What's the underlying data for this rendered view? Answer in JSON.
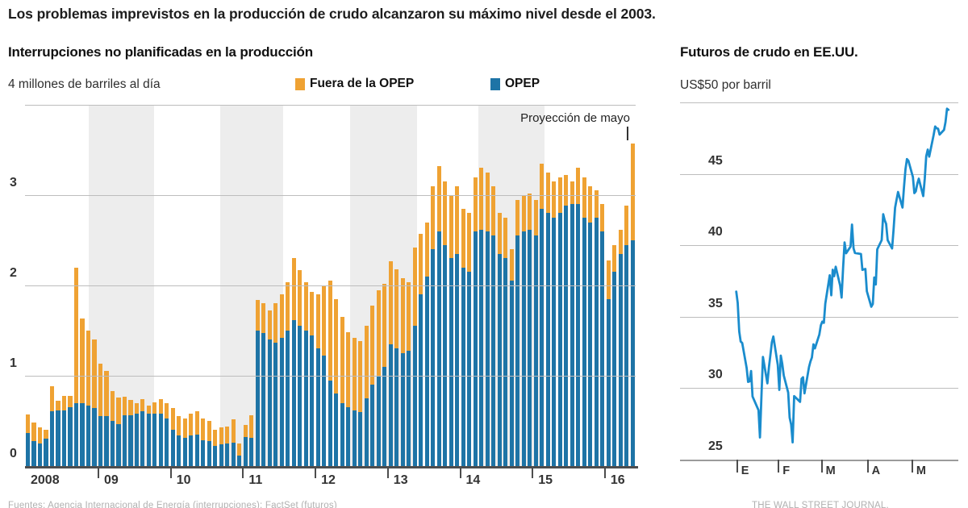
{
  "page": {
    "headline": "Los problemas imprevistos en la producción de crudo alcanzaron su máximo nivel desde el 2003.",
    "footer_left": "Fuentes: Agencia Internacional de Energía (interrupciones); FactSet (futuros)",
    "footer_right": "THE WALL STREET JOURNAL."
  },
  "colors": {
    "opec_blue": "#1e74a6",
    "non_opec_orange": "#efa233",
    "futures_line_blue": "#1a8ccd",
    "grid_gray": "#bdbdbd",
    "band_gray": "#ededed",
    "axis_dark": "#4d4d4d"
  },
  "left_chart": {
    "title": "Interrupciones no planificadas en la producción",
    "unit_label": "4 millones de barriles al día",
    "legend": [
      {
        "label": "Fuera de la OPEP",
        "color": "#efa233"
      },
      {
        "label": "OPEP",
        "color": "#1e74a6"
      }
    ],
    "annotation": "Proyección de mayo",
    "y_labels": [
      "3",
      "2",
      "1",
      "0"
    ],
    "x_labels": [
      "2008",
      "09",
      "10",
      "11",
      "12",
      "13",
      "14",
      "15",
      "16"
    ]
  },
  "right_chart": {
    "title": "Futuros de crudo en EE.UU.",
    "unit_label": "US$50 por barril",
    "y_labels": [
      "45",
      "40",
      "35",
      "30",
      "25"
    ],
    "x_labels": [
      "E",
      "F",
      "M",
      "A",
      "M"
    ]
  },
  "chart_data": [
    {
      "type": "bar",
      "stacked": true,
      "title": "Interrupciones no planificadas en la producción",
      "ylabel": "millones de barriles al día",
      "ylim": [
        0,
        4
      ],
      "y_gridlines": [
        4,
        3,
        2,
        1,
        0
      ],
      "x_axis_year_labels": [
        "2008",
        "09",
        "10",
        "11",
        "12",
        "13",
        "14",
        "15",
        "16"
      ],
      "annotation": {
        "text": "Proyección de mayo",
        "applies_to": "2016-05"
      },
      "shaded_band_fractions": [
        [
          0.104,
          0.211
        ],
        [
          0.32,
          0.423
        ],
        [
          0.532,
          0.642
        ],
        [
          0.742,
          0.851
        ]
      ],
      "categories": [
        "2008-01",
        "2008-02",
        "2008-03",
        "2008-04",
        "2008-05",
        "2008-06",
        "2008-07",
        "2008-08",
        "2008-09",
        "2008-10",
        "2008-11",
        "2008-12",
        "2009-01",
        "2009-02",
        "2009-03",
        "2009-04",
        "2009-05",
        "2009-06",
        "2009-07",
        "2009-08",
        "2009-09",
        "2009-10",
        "2009-11",
        "2009-12",
        "2010-01",
        "2010-02",
        "2010-03",
        "2010-04",
        "2010-05",
        "2010-06",
        "2010-07",
        "2010-08",
        "2010-09",
        "2010-10",
        "2010-11",
        "2010-12",
        "2011-01",
        "2011-02",
        "2011-03",
        "2011-04",
        "2011-05",
        "2011-06",
        "2011-07",
        "2011-08",
        "2011-09",
        "2011-10",
        "2011-11",
        "2011-12",
        "2012-01",
        "2012-02",
        "2012-03",
        "2012-04",
        "2012-05",
        "2012-06",
        "2012-07",
        "2012-08",
        "2012-09",
        "2012-10",
        "2012-11",
        "2012-12",
        "2013-01",
        "2013-02",
        "2013-03",
        "2013-04",
        "2013-05",
        "2013-06",
        "2013-07",
        "2013-08",
        "2013-09",
        "2013-10",
        "2013-11",
        "2013-12",
        "2014-01",
        "2014-02",
        "2014-03",
        "2014-04",
        "2014-05",
        "2014-06",
        "2014-07",
        "2014-08",
        "2014-09",
        "2014-10",
        "2014-11",
        "2014-12",
        "2015-01",
        "2015-02",
        "2015-03",
        "2015-04",
        "2015-05",
        "2015-06",
        "2015-07",
        "2015-08",
        "2015-09",
        "2015-10",
        "2015-11",
        "2015-12",
        "2016-01",
        "2016-02",
        "2016-03",
        "2016-04",
        "2016-05"
      ],
      "series": [
        {
          "name": "OPEP",
          "color": "#1e74a6",
          "values": [
            0.37,
            0.28,
            0.25,
            0.3,
            0.61,
            0.62,
            0.62,
            0.65,
            0.7,
            0.7,
            0.67,
            0.64,
            0.55,
            0.55,
            0.5,
            0.46,
            0.56,
            0.56,
            0.58,
            0.61,
            0.58,
            0.58,
            0.58,
            0.53,
            0.4,
            0.34,
            0.31,
            0.34,
            0.35,
            0.29,
            0.28,
            0.22,
            0.24,
            0.25,
            0.26,
            0.12,
            0.32,
            0.31,
            1.5,
            1.47,
            1.4,
            1.37,
            1.42,
            1.5,
            1.62,
            1.55,
            1.5,
            1.45,
            1.3,
            1.22,
            0.95,
            0.8,
            0.7,
            0.65,
            0.62,
            0.6,
            0.75,
            0.9,
            1.0,
            1.1,
            1.35,
            1.3,
            1.25,
            1.28,
            1.55,
            1.9,
            2.1,
            2.4,
            2.6,
            2.45,
            2.3,
            2.35,
            2.2,
            2.15,
            2.6,
            2.62,
            2.6,
            2.55,
            2.35,
            2.3,
            2.05,
            2.55,
            2.6,
            2.62,
            2.55,
            2.85,
            2.8,
            2.75,
            2.8,
            2.88,
            2.9,
            2.9,
            2.75,
            2.7,
            2.75,
            2.6,
            1.85,
            2.15,
            2.35,
            2.45,
            2.5
          ]
        },
        {
          "name": "Fuera de la OPEP",
          "color": "#efa233",
          "values": [
            0.2,
            0.2,
            0.18,
            0.1,
            0.27,
            0.1,
            0.16,
            0.13,
            1.5,
            0.93,
            0.83,
            0.76,
            0.58,
            0.5,
            0.33,
            0.3,
            0.21,
            0.17,
            0.12,
            0.13,
            0.09,
            0.13,
            0.16,
            0.17,
            0.24,
            0.21,
            0.22,
            0.24,
            0.26,
            0.24,
            0.22,
            0.18,
            0.19,
            0.19,
            0.26,
            0.13,
            0.14,
            0.25,
            0.34,
            0.33,
            0.32,
            0.43,
            0.48,
            0.54,
            0.68,
            0.62,
            0.54,
            0.48,
            0.6,
            0.78,
            1.1,
            1.05,
            0.95,
            0.83,
            0.8,
            0.78,
            0.8,
            0.88,
            0.95,
            0.92,
            0.92,
            0.88,
            0.83,
            0.76,
            0.87,
            0.67,
            0.6,
            0.7,
            0.72,
            0.7,
            0.7,
            0.75,
            0.65,
            0.65,
            0.6,
            0.68,
            0.65,
            0.55,
            0.45,
            0.45,
            0.35,
            0.4,
            0.4,
            0.4,
            0.4,
            0.5,
            0.45,
            0.4,
            0.4,
            0.34,
            0.25,
            0.4,
            0.45,
            0.4,
            0.3,
            0.3,
            0.43,
            0.3,
            0.27,
            0.43,
            1.07
          ]
        }
      ]
    },
    {
      "type": "line",
      "title": "Futuros de crudo en EE.UU.",
      "ylabel": "US$ por barril",
      "ylim": [
        25,
        50
      ],
      "y_gridlines": [
        50,
        45,
        40,
        35,
        30,
        25
      ],
      "x_unit": "día del año 2016",
      "x_tick_days": [
        3,
        31,
        60,
        91,
        121
      ],
      "x_tick_labels": [
        "E",
        "F",
        "M",
        "A",
        "M"
      ],
      "line_color": "#1a8ccd",
      "points": [
        [
          3,
          36.76
        ],
        [
          4,
          35.97
        ],
        [
          5,
          33.97
        ],
        [
          6,
          33.27
        ],
        [
          7,
          33.16
        ],
        [
          10,
          31.41
        ],
        [
          11,
          30.44
        ],
        [
          12,
          30.48
        ],
        [
          13,
          31.2
        ],
        [
          14,
          29.42
        ],
        [
          18,
          28.46
        ],
        [
          19,
          26.55
        ],
        [
          20,
          29.53
        ],
        [
          21,
          32.19
        ],
        [
          24,
          30.34
        ],
        [
          25,
          31.45
        ],
        [
          26,
          32.3
        ],
        [
          27,
          33.22
        ],
        [
          28,
          33.62
        ],
        [
          31,
          31.62
        ],
        [
          32,
          29.88
        ],
        [
          33,
          32.28
        ],
        [
          34,
          31.72
        ],
        [
          35,
          30.89
        ],
        [
          38,
          29.69
        ],
        [
          39,
          27.94
        ],
        [
          40,
          27.45
        ],
        [
          41,
          26.21
        ],
        [
          42,
          29.44
        ],
        [
          46,
          29.04
        ],
        [
          47,
          30.66
        ],
        [
          48,
          30.77
        ],
        [
          49,
          29.64
        ],
        [
          52,
          31.48
        ],
        [
          53,
          31.87
        ],
        [
          54,
          32.15
        ],
        [
          55,
          33.07
        ],
        [
          56,
          32.78
        ],
        [
          59,
          33.75
        ],
        [
          60,
          34.4
        ],
        [
          61,
          34.66
        ],
        [
          62,
          34.57
        ],
        [
          63,
          35.92
        ],
        [
          66,
          37.9
        ],
        [
          67,
          36.5
        ],
        [
          68,
          38.29
        ],
        [
          69,
          37.84
        ],
        [
          70,
          38.5
        ],
        [
          73,
          37.18
        ],
        [
          74,
          36.34
        ],
        [
          75,
          38.46
        ],
        [
          76,
          40.2
        ],
        [
          77,
          39.44
        ],
        [
          80,
          39.91
        ],
        [
          81,
          41.45
        ],
        [
          82,
          39.79
        ],
        [
          83,
          39.46
        ],
        [
          87,
          39.39
        ],
        [
          88,
          38.28
        ],
        [
          89,
          38.32
        ],
        [
          90,
          38.34
        ],
        [
          91,
          36.79
        ],
        [
          94,
          35.7
        ],
        [
          95,
          35.89
        ],
        [
          96,
          37.75
        ],
        [
          97,
          37.26
        ],
        [
          98,
          39.72
        ],
        [
          101,
          40.36
        ],
        [
          102,
          42.17
        ],
        [
          103,
          41.76
        ],
        [
          104,
          41.5
        ],
        [
          105,
          40.36
        ],
        [
          108,
          39.78
        ],
        [
          109,
          41.08
        ],
        [
          110,
          42.63
        ],
        [
          111,
          43.18
        ],
        [
          112,
          43.73
        ],
        [
          115,
          42.64
        ],
        [
          116,
          44.04
        ],
        [
          117,
          45.33
        ],
        [
          118,
          46.03
        ],
        [
          119,
          45.92
        ],
        [
          122,
          44.78
        ],
        [
          123,
          43.65
        ],
        [
          124,
          43.78
        ],
        [
          125,
          44.32
        ],
        [
          126,
          44.66
        ],
        [
          129,
          43.44
        ],
        [
          130,
          44.66
        ],
        [
          131,
          46.23
        ],
        [
          132,
          46.7
        ],
        [
          133,
          46.21
        ],
        [
          136,
          47.72
        ],
        [
          137,
          48.31
        ],
        [
          138,
          48.19
        ],
        [
          139,
          48.16
        ],
        [
          140,
          47.75
        ],
        [
          143,
          48.08
        ],
        [
          144,
          48.62
        ],
        [
          145,
          49.56
        ],
        [
          146,
          49.48
        ]
      ]
    }
  ]
}
